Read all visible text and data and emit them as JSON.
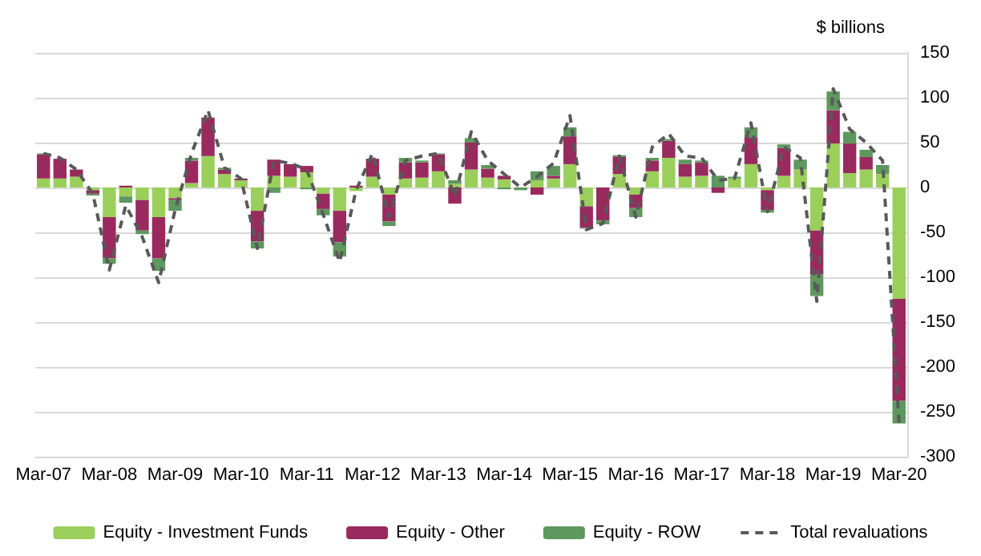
{
  "chart_data": {
    "type": "bar",
    "stacked": true,
    "ylabel": "$ billions",
    "categories": [
      "Mar-07",
      null,
      null,
      null,
      "Mar-08",
      null,
      null,
      null,
      "Mar-09",
      null,
      null,
      null,
      "Mar-10",
      null,
      null,
      null,
      "Mar-11",
      null,
      null,
      null,
      "Mar-12",
      null,
      null,
      null,
      "Mar-13",
      null,
      null,
      null,
      "Mar-14",
      null,
      null,
      null,
      "Mar-15",
      null,
      null,
      null,
      "Mar-16",
      null,
      null,
      null,
      "Mar-17",
      null,
      null,
      null,
      "Mar-18",
      null,
      null,
      null,
      "Mar-19",
      null,
      null,
      null,
      "Mar-20"
    ],
    "series": [
      {
        "name": "Equity - Investment Funds",
        "color": "#9bcf5b",
        "values": [
          10,
          10,
          12,
          -3,
          -33,
          -10,
          -14,
          -33,
          -12,
          5,
          35,
          15,
          8,
          -26,
          13,
          12,
          17,
          -7,
          -26,
          -4,
          12,
          -8,
          10,
          11,
          18,
          4,
          20,
          11,
          9,
          null,
          8,
          10,
          26,
          -21,
          null,
          15,
          -8,
          18,
          33,
          12,
          13,
          null,
          10,
          26,
          -3,
          13,
          20,
          -48,
          49,
          16,
          20,
          15,
          -124
        ]
      },
      {
        "name": "Equity - Other",
        "color": "#992a5e",
        "values": [
          27,
          22,
          8,
          -4,
          -46,
          2,
          -34,
          -46,
          -2,
          25,
          43,
          5,
          2,
          -34,
          18,
          14,
          7,
          -17,
          -35,
          2,
          20,
          -30,
          18,
          17,
          19,
          -18,
          30,
          10,
          4,
          null,
          -8,
          3,
          31,
          -24,
          -37,
          19,
          -15,
          12,
          19,
          14,
          15,
          -6,
          null,
          30,
          -22,
          31,
          null,
          -49,
          37,
          33,
          14,
          null,
          -114
        ]
      },
      {
        "name": "Equity - ROW",
        "color": "#5e985e",
        "values": [
          1,
          null,
          null,
          -2,
          -6,
          -7,
          -4,
          -14,
          -12,
          3,
          null,
          2,
          null,
          -8,
          -6,
          null,
          -2,
          -7,
          -16,
          null,
          null,
          -5,
          5,
          2,
          1,
          4,
          5,
          4,
          -2,
          -3,
          10,
          11,
          10,
          -1,
          -4,
          2,
          -10,
          3,
          2,
          5,
          2,
          13,
          2,
          11,
          -3,
          4,
          11,
          -24,
          21,
          13,
          8,
          10,
          -25
        ]
      },
      {
        "name": "Total revaluations",
        "type": "line",
        "color": "#595959",
        "line_style": "dashed",
        "marker": "none",
        "values": [
          38,
          33,
          20,
          -7,
          -92,
          -20,
          -55,
          -106,
          -25,
          38,
          86,
          22,
          10,
          -68,
          30,
          27,
          20,
          -30,
          -83,
          -3,
          38,
          -33,
          30,
          35,
          38,
          -10,
          62,
          30,
          15,
          0,
          12,
          27,
          80,
          -47,
          -40,
          35,
          -33,
          45,
          60,
          35,
          33,
          8,
          10,
          72,
          -27,
          45,
          33,
          -127,
          110,
          65,
          50,
          30,
          -263
        ]
      }
    ],
    "ylim": [
      -300,
      150
    ],
    "yticks": [
      -300,
      -250,
      -200,
      -150,
      -100,
      -50,
      0,
      50,
      100,
      150
    ],
    "grid": "y",
    "legend": "bottom"
  }
}
